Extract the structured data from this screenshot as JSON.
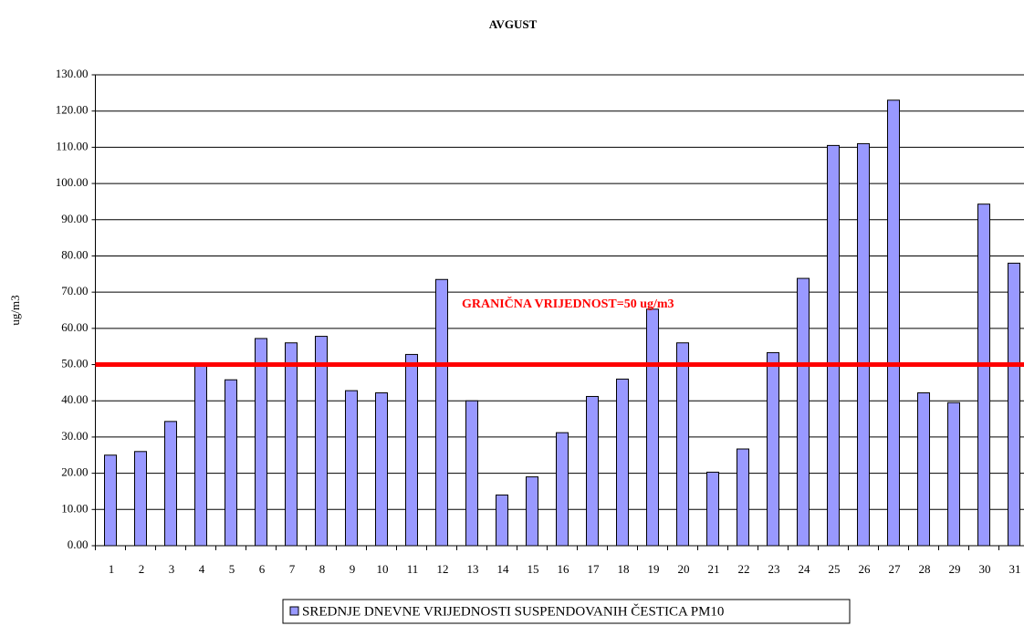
{
  "chart_data": {
    "type": "bar",
    "title": "AVGUST",
    "y_label": "ug/m3",
    "categories": [
      "1",
      "2",
      "3",
      "4",
      "5",
      "6",
      "7",
      "8",
      "9",
      "10",
      "11",
      "12",
      "13",
      "14",
      "15",
      "16",
      "17",
      "18",
      "19",
      "20",
      "21",
      "22",
      "23",
      "24",
      "25",
      "26",
      "27",
      "28",
      "29",
      "30",
      "31"
    ],
    "series": [
      {
        "name": "SREDNJE DNEVNE VRIJEDNOSTI SUSPENDOVANIH ČESTICA PM10",
        "color": "#9999ff",
        "values": [
          25,
          26,
          34.3,
          49.5,
          45.8,
          57.2,
          56,
          57.8,
          42.8,
          42.2,
          52.8,
          73.5,
          40,
          14,
          19,
          31.2,
          41.2,
          46,
          65.3,
          56,
          20.3,
          26.7,
          53.3,
          73.8,
          110.5,
          111,
          123,
          42.2,
          39.5,
          94.3,
          78
        ]
      }
    ],
    "threshold": {
      "value": 50,
      "label": "GRANIČNA VRIJEDNOST=50 ug/m3",
      "color": "#ff0000"
    },
    "ylim": [
      0,
      130
    ],
    "yticks": [
      {
        "value": 0,
        "label": "0.00"
      },
      {
        "value": 10,
        "label": "10.00"
      },
      {
        "value": 20,
        "label": "20.00"
      },
      {
        "value": 30,
        "label": "30.00"
      },
      {
        "value": 40,
        "label": "40.00"
      },
      {
        "value": 50,
        "label": "50.00"
      },
      {
        "value": 60,
        "label": "60.00"
      },
      {
        "value": 70,
        "label": "70.00"
      },
      {
        "value": 80,
        "label": "80.00"
      },
      {
        "value": 90,
        "label": "90.00"
      },
      {
        "value": 100,
        "label": "100.00"
      },
      {
        "value": 110,
        "label": "110.00"
      },
      {
        "value": 120,
        "label": "120.00"
      },
      {
        "value": 130,
        "label": "130.00"
      }
    ],
    "grid": true,
    "legend": "bottom"
  }
}
